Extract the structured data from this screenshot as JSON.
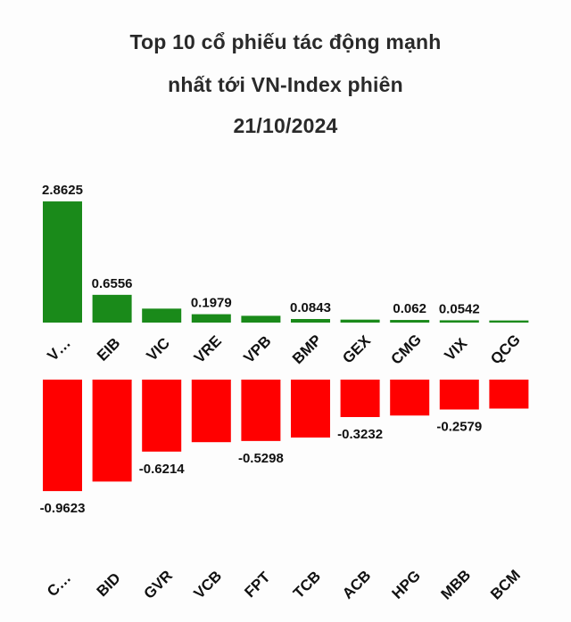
{
  "chart_data": [
    {
      "type": "bar",
      "title_lines": [
        "Top 10 cổ phiếu tác động mạnh",
        "nhất tới VN-Index phiên",
        "21/10/2024"
      ],
      "categories": [
        "V…",
        "EIB",
        "VIC",
        "VRE",
        "VPB",
        "BMP",
        "GEX",
        "CMG",
        "VIX",
        "QCG"
      ],
      "values": [
        2.8625,
        0.6556,
        0.33,
        0.1979,
        0.16,
        0.0843,
        0.07,
        0.062,
        0.0542,
        0.05
      ],
      "value_labels": [
        "2.8625",
        "0.6556",
        "",
        "0.1979",
        "",
        "0.0843",
        "",
        "0.062",
        "0.0542",
        ""
      ],
      "color": "#1a8a1a"
    },
    {
      "type": "bar",
      "categories": [
        "C…",
        "BID",
        "GVR",
        "VCB",
        "FPT",
        "TCB",
        "ACB",
        "HPG",
        "MBB",
        "BCM"
      ],
      "values": [
        -0.9623,
        -0.88,
        -0.6214,
        -0.54,
        -0.5298,
        -0.5,
        -0.3232,
        -0.31,
        -0.2579,
        -0.25
      ],
      "value_labels": [
        "-0.9623",
        "",
        "-0.6214",
        "",
        "-0.5298",
        "",
        "-0.3232",
        "",
        "-0.2579",
        ""
      ],
      "color": "#ff0000"
    }
  ]
}
